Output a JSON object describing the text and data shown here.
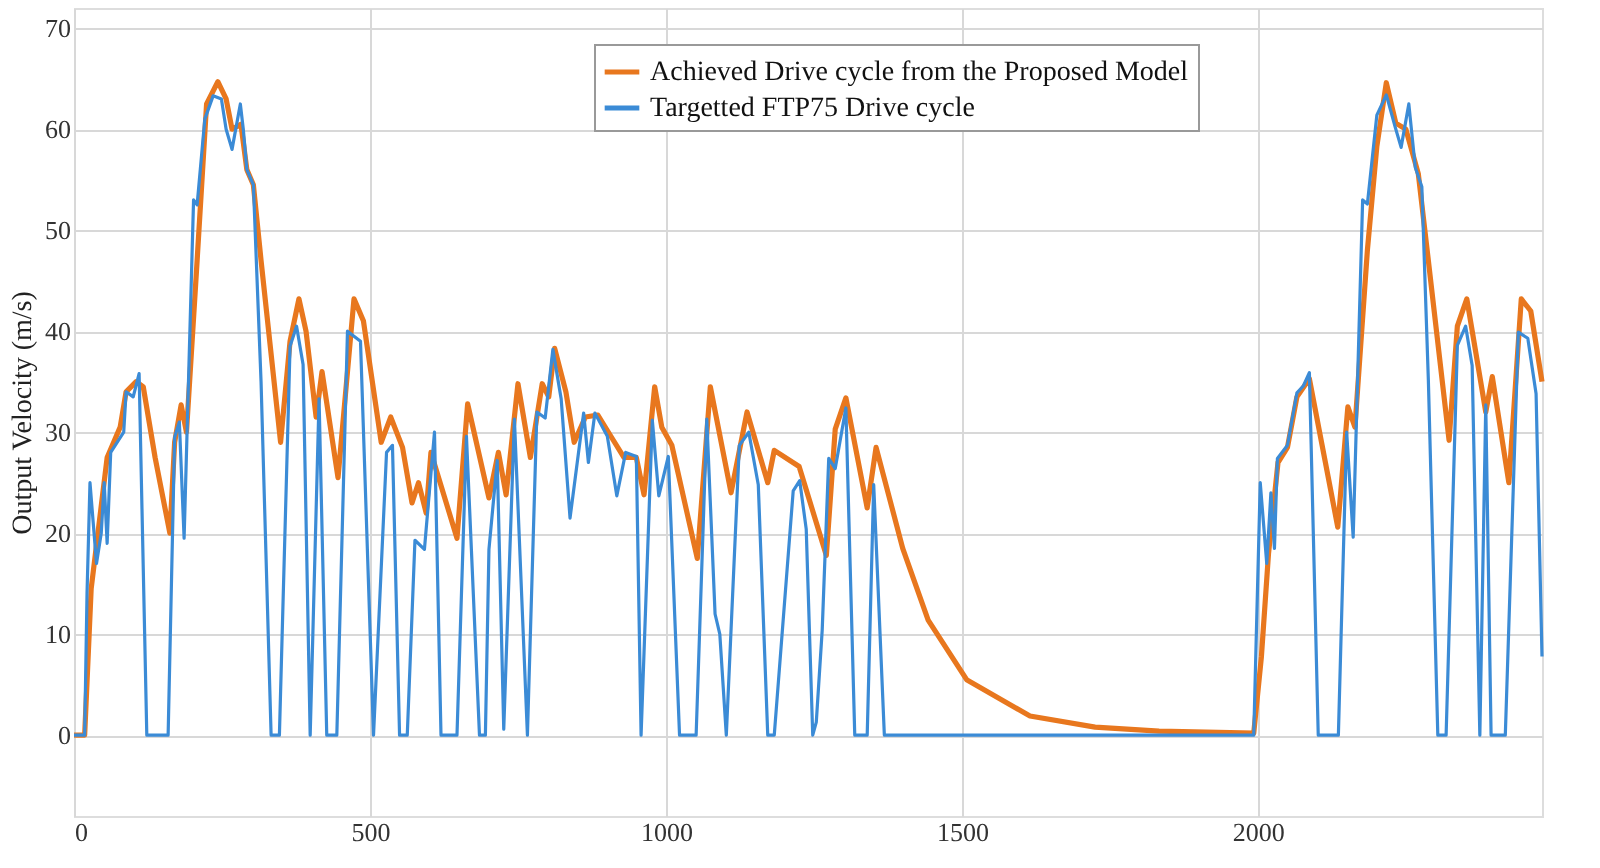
{
  "chart_data": {
    "type": "line",
    "ylabel": "Output Velocity (m/s)",
    "xlim": [
      0,
      2480
    ],
    "ylim": [
      -8,
      72
    ],
    "xticks": [
      0,
      500,
      1000,
      1500,
      2000
    ],
    "yticks": [
      0,
      10,
      20,
      30,
      40,
      50,
      60,
      70
    ],
    "grid": true,
    "legend": "top",
    "marker": "none",
    "line_style": "solid",
    "series": [
      {
        "name": "Achieved Drive cycle from the Proposed Model",
        "color": "#e8771e",
        "x": [
          0,
          18,
          29,
          56,
          78,
          88,
          105,
          117,
          137,
          162,
          170,
          181,
          190,
          208,
          224,
          243,
          257,
          267,
          282,
          292,
          303,
          316,
          349,
          365,
          380,
          392,
          409,
          419,
          446,
          473,
          489,
          519,
          535,
          555,
          571,
          582,
          595,
          603,
          647,
          665,
          701,
          717,
          730,
          750,
          771,
          791,
          802,
          812,
          831,
          845,
          864,
          885,
          908,
          929,
          950,
          963,
          981,
          993,
          1010,
          1053,
          1075,
          1110,
          1137,
          1172,
          1183,
          1225,
          1271,
          1286,
          1304,
          1340,
          1355,
          1400,
          1443,
          1508,
          1615,
          1725,
          1833,
          1993,
          2006,
          2018,
          2034,
          2050,
          2066,
          2087,
          2135,
          2152,
          2164,
          2185,
          2201,
          2217,
          2233,
          2250,
          2271,
          2288,
          2323,
          2337,
          2353,
          2385,
          2396,
          2424,
          2445,
          2461,
          2480
        ],
        "values": [
          0,
          0,
          14.5,
          27.5,
          30.5,
          34,
          35,
          34.5,
          27.5,
          20,
          29,
          32.7,
          30,
          47,
          62.5,
          64.7,
          63,
          60,
          60.5,
          56,
          54.5,
          47,
          29,
          39,
          43.2,
          40,
          31.5,
          36,
          25.5,
          43.2,
          41,
          29,
          31.5,
          28.5,
          23,
          25,
          22,
          28,
          19.5,
          32.8,
          23.5,
          28,
          23.8,
          34.8,
          27.5,
          34.8,
          33.5,
          38.3,
          34,
          29,
          31.5,
          31.7,
          29.5,
          27.5,
          27.5,
          23.8,
          34.5,
          30.5,
          28.7,
          17.5,
          34.5,
          24,
          32,
          25,
          28.2,
          26.6,
          17.8,
          30.3,
          33.4,
          22.5,
          28.5,
          18.5,
          11.4,
          5.5,
          1.9,
          0.8,
          0.4,
          0.2,
          7.8,
          18,
          27,
          28.5,
          33.5,
          35.3,
          20.6,
          32.5,
          30.5,
          48,
          58.3,
          64.6,
          60.6,
          60,
          55.6,
          47,
          29.2,
          40.5,
          43.2,
          32,
          35.5,
          25,
          43.2,
          42,
          35
        ]
      },
      {
        "name": "Targetted FTP75 Drive cycle",
        "color": "#3b8bd6",
        "x": [
          0,
          18,
          22,
          27,
          38,
          46,
          51,
          56,
          62,
          84,
          88,
          100,
          110,
          123,
          159,
          170,
          178,
          186,
          202,
          208,
          221,
          235,
          249,
          257,
          267,
          281,
          286,
          292,
          303,
          316,
          333,
          347,
          365,
          376,
          387,
          399,
          414,
          427,
          444,
          462,
          484,
          506,
          528,
          538,
          550,
          563,
          576,
          592,
          609,
          620,
          647,
          663,
          685,
          695,
          701,
          715,
          726,
          744,
          766,
          782,
          796,
          809,
          823,
          838,
          861,
          869,
          880,
          901,
          917,
          932,
          950,
          958,
          977,
          988,
          1004,
          1023,
          1051,
          1069,
          1083,
          1091,
          1102,
          1124,
          1140,
          1156,
          1172,
          1183,
          1215,
          1226,
          1237,
          1248,
          1254,
          1264,
          1275,
          1286,
          1304,
          1319,
          1340,
          1351,
          1369,
          1993,
          2004,
          2015,
          2022,
          2028,
          2033,
          2050,
          2066,
          2077,
          2087,
          2102,
          2136,
          2150,
          2161,
          2177,
          2185,
          2201,
          2217,
          2232,
          2242,
          2255,
          2266,
          2277,
          2288,
          2304,
          2318,
          2337,
          2351,
          2362,
          2375,
          2385,
          2394,
          2418,
          2440,
          2456,
          2470,
          2480
        ],
        "values": [
          0,
          0,
          14,
          25,
          17,
          20,
          25,
          19,
          28,
          30,
          34,
          33.5,
          35.8,
          0,
          0,
          29.5,
          31,
          19.5,
          53,
          52.5,
          61,
          63.3,
          63,
          60,
          58,
          62.5,
          60,
          56,
          54.5,
          35,
          0,
          0,
          38.5,
          40.5,
          36.7,
          0,
          33.3,
          0,
          0,
          40,
          39,
          0,
          28,
          28.7,
          0,
          0,
          19.3,
          18.4,
          30,
          0,
          0,
          29.6,
          0,
          0,
          18.4,
          27.2,
          0.6,
          31.3,
          0,
          32,
          31.4,
          38.2,
          33.3,
          21.5,
          31.9,
          27,
          31.9,
          29.6,
          23.7,
          28,
          27.6,
          0,
          31.2,
          23.7,
          27.6,
          0,
          0,
          31.3,
          12,
          10,
          0,
          28.7,
          30,
          24.8,
          0,
          0,
          24.2,
          25.2,
          20.4,
          0,
          1.3,
          10.4,
          27.4,
          26.4,
          32.4,
          0,
          0,
          24.8,
          0,
          0,
          25,
          17,
          24,
          18.5,
          27.4,
          28.7,
          33.9,
          34.6,
          35.9,
          0,
          0,
          30,
          19.6,
          53,
          52.6,
          61.4,
          63.4,
          60.2,
          58.2,
          62.5,
          56.2,
          54.3,
          35.2,
          0,
          0,
          38.6,
          40.5,
          36.6,
          0,
          32.7,
          0,
          0,
          39.9,
          39.3,
          33.8,
          7.8
        ]
      }
    ]
  }
}
